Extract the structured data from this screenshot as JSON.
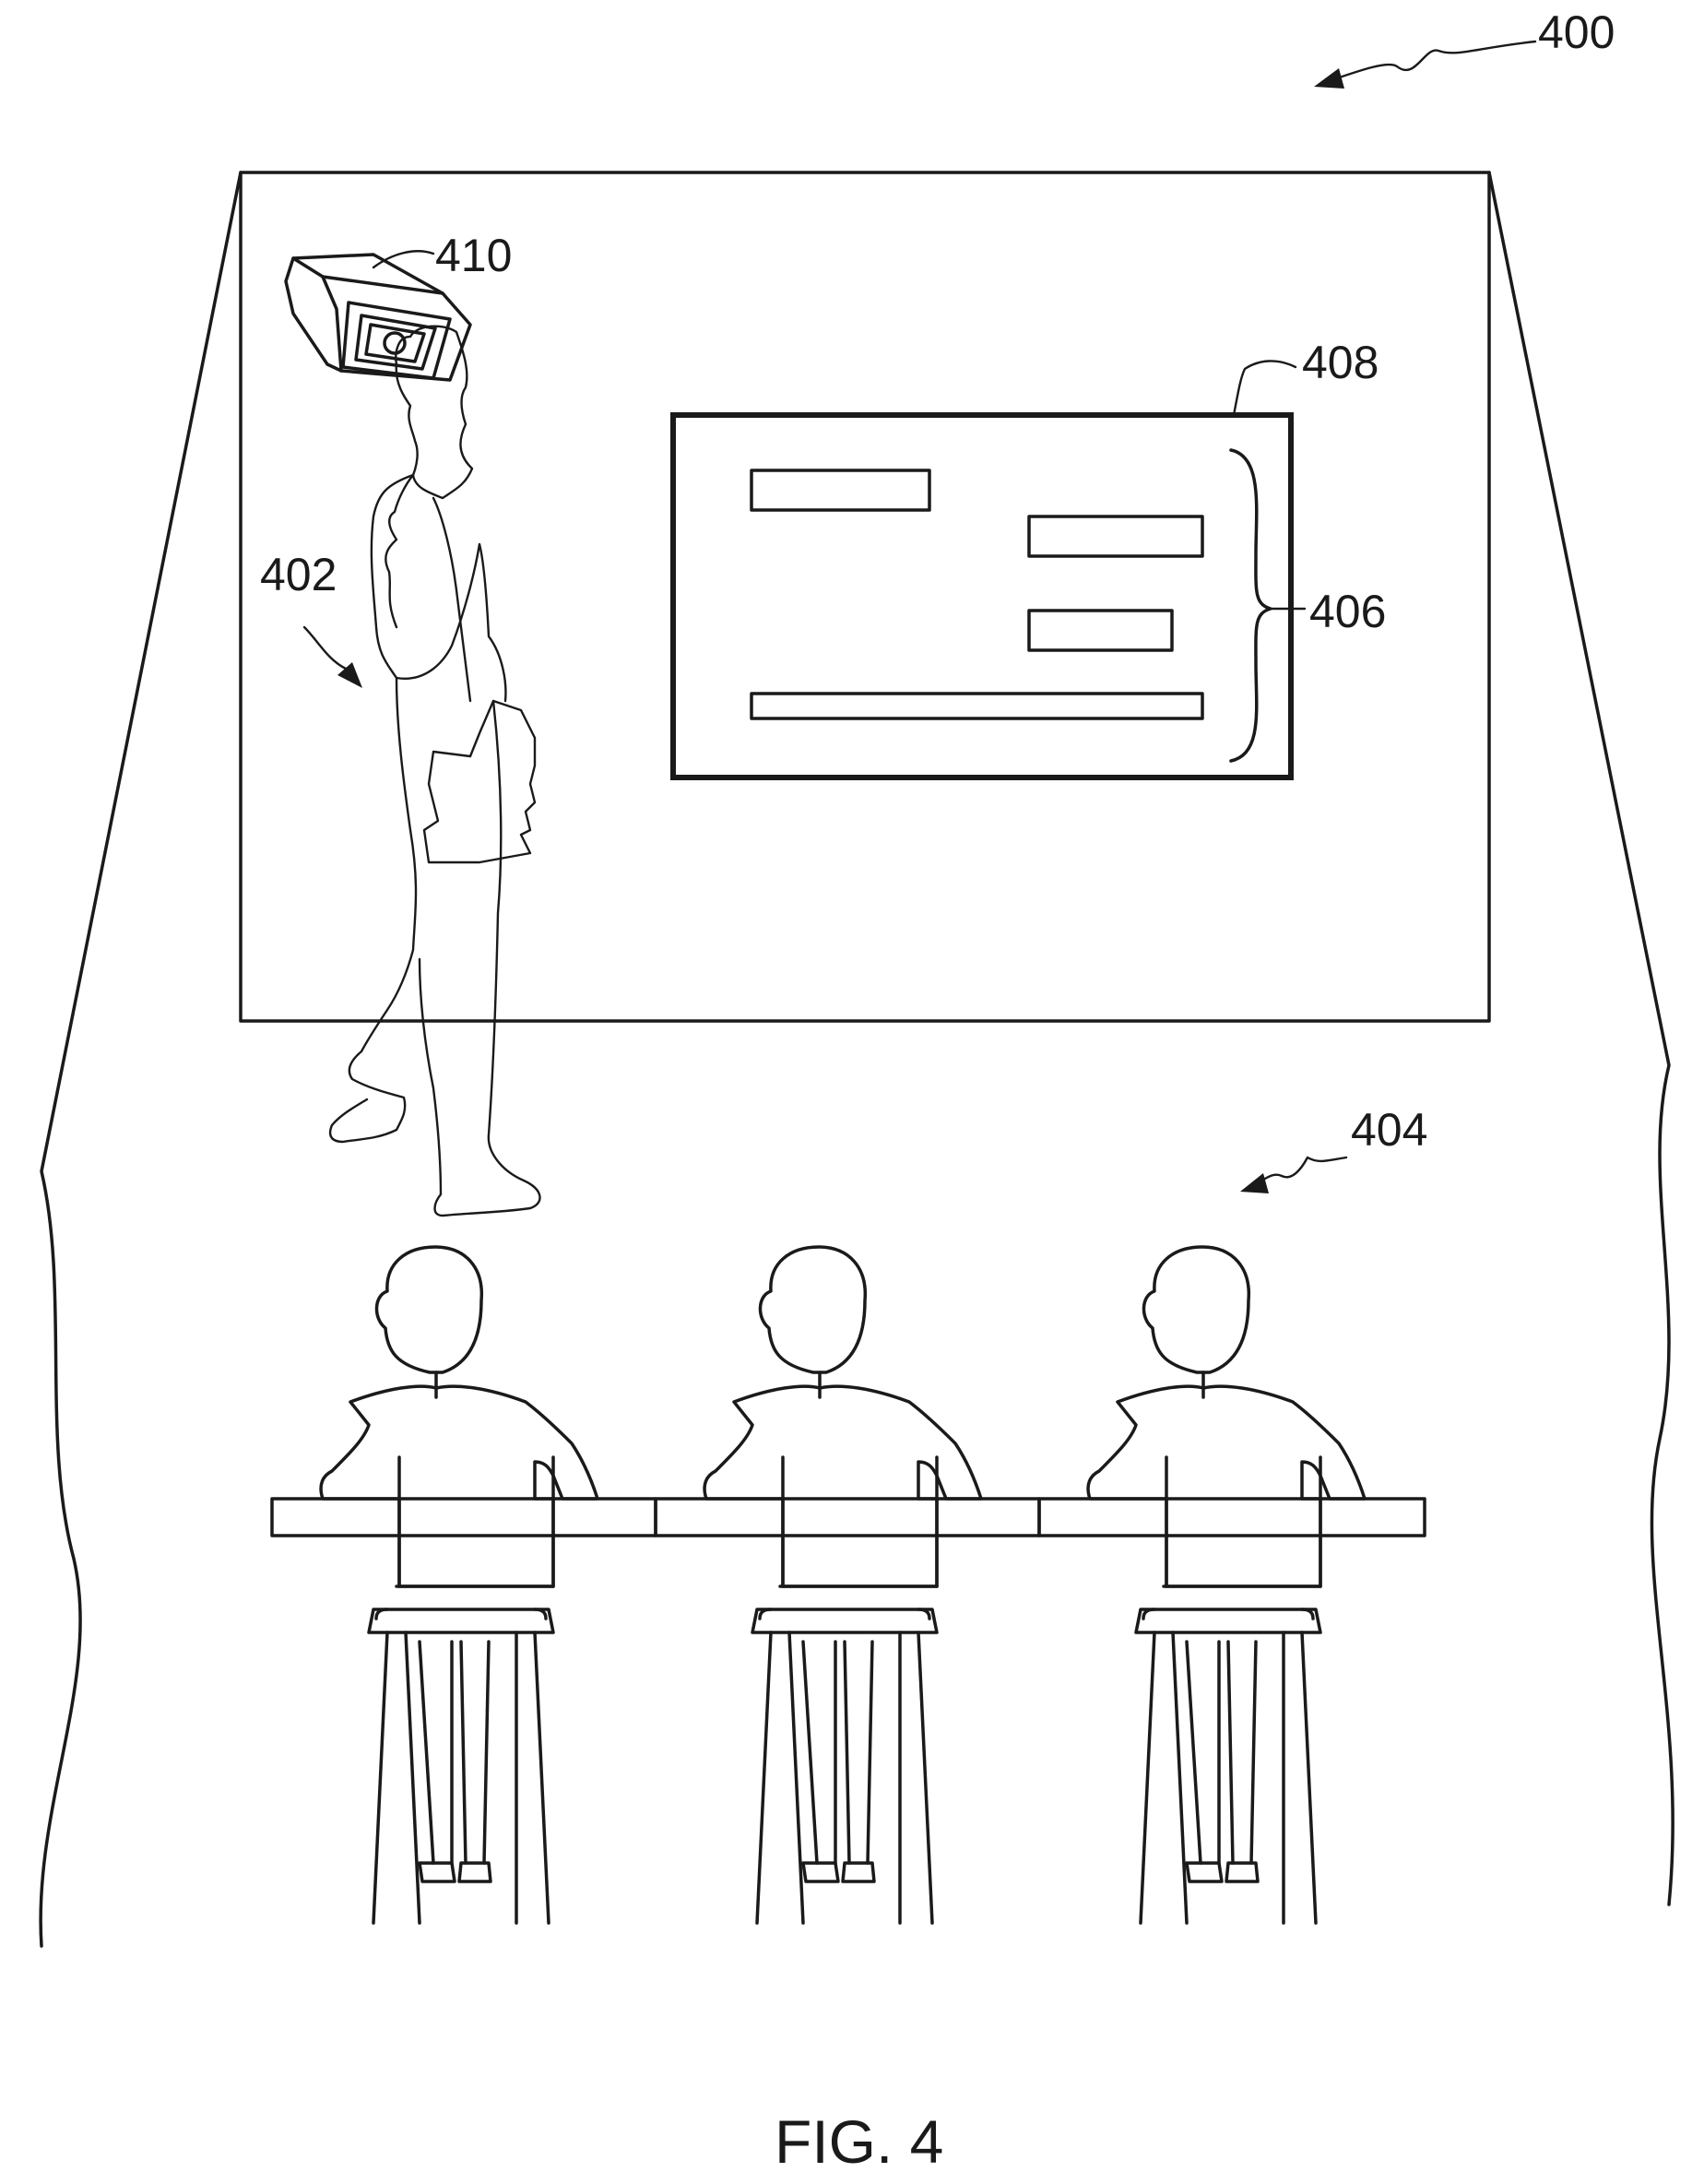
{
  "figure": {
    "caption": "FIG. 4",
    "labels": {
      "system": "400",
      "presenter": "402",
      "audience": "404",
      "content": "406",
      "display": "408",
      "camera": "410"
    }
  }
}
